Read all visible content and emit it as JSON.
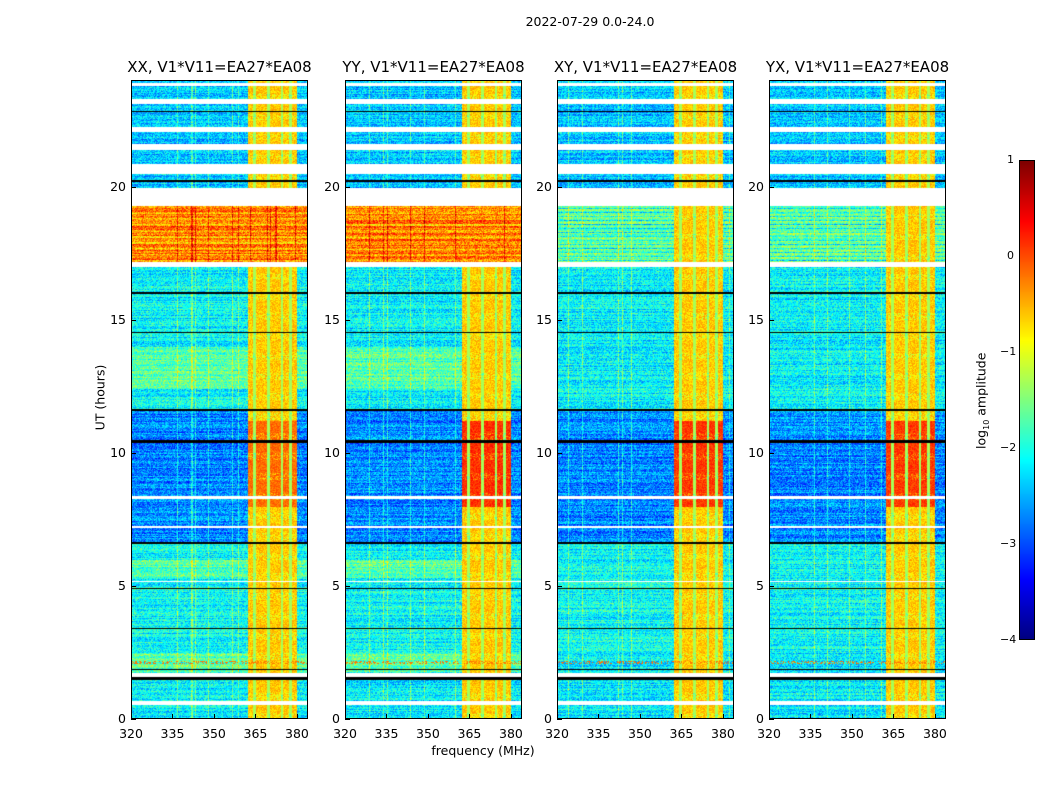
{
  "chart_data": {
    "type": "heatmap",
    "title": "2022-07-29 0.0-24.0",
    "xlabel": "frequency (MHz)",
    "ylabel": "UT (hours)",
    "xlim": [
      320,
      384
    ],
    "ylim": [
      0,
      24
    ],
    "xticks": [
      "320",
      "335",
      "350",
      "365",
      "380"
    ],
    "xtick_values": [
      320,
      335,
      350,
      365,
      380
    ],
    "yticks": [
      "0",
      "5",
      "10",
      "15",
      "20"
    ],
    "ytick_values": [
      0,
      5,
      10,
      15,
      20
    ],
    "panels": [
      {
        "title": "XX, V1*V11=EA27*EA08",
        "polarization": "XX",
        "band_17_19_level": -0.2,
        "rfi_peak_level": -0.15
      },
      {
        "title": "YY, V1*V11=EA27*EA08",
        "polarization": "YY",
        "band_17_19_level": -0.2,
        "rfi_peak_level": 0.15
      },
      {
        "title": "XY, V1*V11=EA27*EA08",
        "polarization": "XY",
        "band_17_19_level": -1.6,
        "rfi_peak_level": 0.1
      },
      {
        "title": "YX, V1*V11=EA27*EA08",
        "polarization": "YX",
        "band_17_19_level": -1.6,
        "rfi_peak_level": 0.1
      }
    ],
    "background_segments": [
      {
        "hours": [
          0,
          2.5
        ],
        "level": -2.2
      },
      {
        "hours": [
          2.5,
          6.6
        ],
        "level": -2.1
      },
      {
        "hours": [
          6.6,
          11.6
        ],
        "level": -2.7
      },
      {
        "hours": [
          11.6,
          17.0
        ],
        "level": -2.15
      },
      {
        "hours": [
          19.9,
          24
        ],
        "level": -2.4
      }
    ],
    "rfi_band": {
      "freq_mhz": [
        362,
        380
      ],
      "level": -0.6,
      "peak_hours": [
        8.0,
        11.2
      ],
      "gap_freqs_mhz": [
        364.5,
        369.5,
        374.5,
        377.5
      ]
    },
    "flagged_rows_hours": [
      [
        0.55,
        0.7
      ],
      [
        1.6,
        1.75
      ],
      [
        5.15,
        5.2
      ],
      [
        7.2,
        7.25
      ],
      [
        8.3,
        8.4
      ],
      [
        17.0,
        17.2
      ],
      [
        19.3,
        19.95
      ],
      [
        20.5,
        20.85
      ],
      [
        21.4,
        21.6
      ],
      [
        22.05,
        22.25
      ],
      [
        23.1,
        23.3
      ],
      [
        23.8,
        23.9
      ]
    ],
    "black_rows_hours": [
      [
        1.5,
        1.58
      ],
      [
        1.85,
        1.9
      ],
      [
        3.4,
        3.45
      ],
      [
        4.9,
        4.95
      ],
      [
        6.6,
        6.68
      ],
      [
        10.4,
        10.5
      ],
      [
        11.6,
        11.66
      ],
      [
        14.5,
        14.56
      ],
      [
        16.0,
        16.05
      ],
      [
        20.2,
        20.25
      ],
      [
        22.8,
        22.85
      ]
    ],
    "colorbar": {
      "label_prefix": "log",
      "label_sub": "10",
      "label_suffix": " amplitude",
      "range": [
        -4,
        1
      ],
      "ticks": [
        "1",
        "0",
        "−1",
        "−2",
        "−3",
        "−4"
      ],
      "tick_values": [
        1,
        0,
        -1,
        -2,
        -3,
        -4
      ],
      "colormap": "jet"
    }
  }
}
